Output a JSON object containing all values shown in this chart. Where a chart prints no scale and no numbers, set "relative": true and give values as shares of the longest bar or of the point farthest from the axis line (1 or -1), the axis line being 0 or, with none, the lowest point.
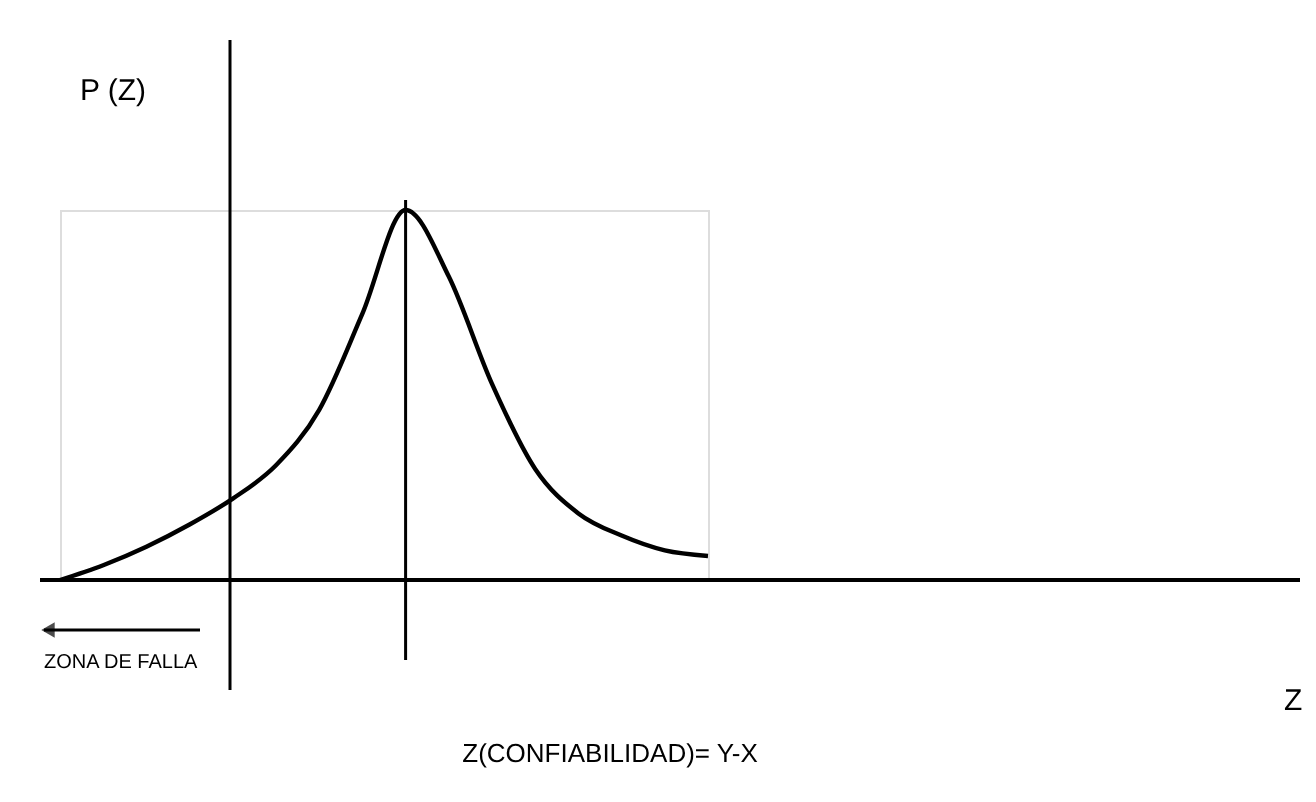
{
  "chart_data": {
    "type": "line",
    "relative": true,
    "ylabel": "P (Z)",
    "categories": [
      null,
      null,
      null,
      null,
      null,
      null,
      null,
      null,
      null,
      null,
      null,
      null,
      null,
      null,
      null,
      null
    ],
    "marker": "none",
    "line_style": "solid",
    "series": [
      {
        "color": "#000000",
        "values": [
          0,
          0.04,
          0.09,
          0.15,
          0.22,
          0.31,
          0.46,
          0.72,
          1,
          0.82,
          0.53,
          0.3,
          0.18,
          0.12,
          0.08,
          0.065
        ]
      }
    ],
    "annotations": [
      "ZONA DE FALLA",
      "Z(CONFIABILIDAD)= Y-X",
      "Z"
    ]
  }
}
